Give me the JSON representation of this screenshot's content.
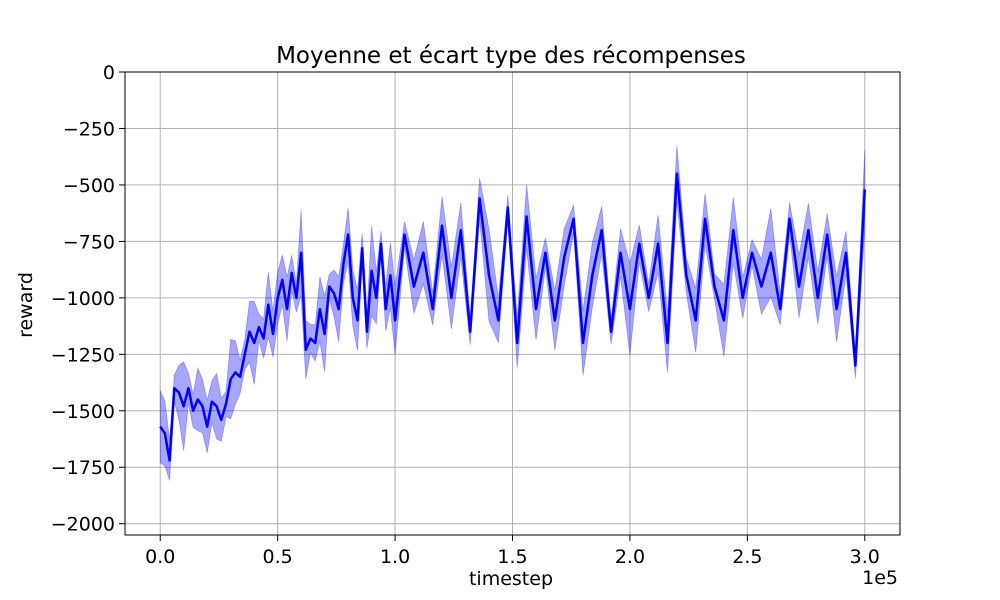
{
  "chart_data": {
    "type": "line",
    "title": "Moyenne et écart type des récompenses",
    "xlabel": "timestep",
    "ylabel": "reward",
    "x_offset_label": "1e5",
    "xlim": [
      -0.15,
      3.15
    ],
    "ylim": [
      -2050,
      0
    ],
    "x_ticks": [
      0.0,
      0.5,
      1.0,
      1.5,
      2.0,
      2.5,
      3.0
    ],
    "x_tick_labels": [
      "0.0",
      "0.5",
      "1.0",
      "1.5",
      "2.0",
      "2.5",
      "3.0"
    ],
    "y_ticks": [
      0,
      -250,
      -500,
      -750,
      -1000,
      -1250,
      -1500,
      -1750,
      -2000
    ],
    "y_tick_labels": [
      "0",
      "−250",
      "−500",
      "−750",
      "−1000",
      "−1250",
      "−1500",
      "−1750",
      "−2000"
    ],
    "grid": true,
    "colors": {
      "mean_line": "#0000ff",
      "band_fill": "#0000ff",
      "grid": "#b0b0b0"
    },
    "series": [
      {
        "x": [
          0.0,
          0.02,
          0.04,
          0.06,
          0.08,
          0.1,
          0.12,
          0.14,
          0.16,
          0.18,
          0.2,
          0.22,
          0.24,
          0.26,
          0.28,
          0.3,
          0.32,
          0.34,
          0.36,
          0.38,
          0.4,
          0.42,
          0.44,
          0.46,
          0.48,
          0.5,
          0.52,
          0.54,
          0.56,
          0.58,
          0.6,
          0.62,
          0.64,
          0.66,
          0.68,
          0.7,
          0.72,
          0.74,
          0.76,
          0.78,
          0.8,
          0.82,
          0.84,
          0.86,
          0.88,
          0.9,
          0.92,
          0.94,
          0.96,
          0.98,
          1.0,
          1.04,
          1.08,
          1.12,
          1.16,
          1.2,
          1.24,
          1.28,
          1.32,
          1.36,
          1.4,
          1.44,
          1.48,
          1.52,
          1.56,
          1.6,
          1.64,
          1.68,
          1.72,
          1.76,
          1.8,
          1.84,
          1.88,
          1.92,
          1.96,
          2.0,
          2.04,
          2.08,
          2.12,
          2.16,
          2.2,
          2.24,
          2.28,
          2.32,
          2.36,
          2.4,
          2.44,
          2.48,
          2.52,
          2.56,
          2.6,
          2.64,
          2.68,
          2.72,
          2.76,
          2.8,
          2.84,
          2.88,
          2.92,
          2.96,
          3.0
        ],
        "mean": [
          -1570,
          -1600,
          -1720,
          -1400,
          -1420,
          -1480,
          -1400,
          -1500,
          -1450,
          -1480,
          -1570,
          -1460,
          -1480,
          -1540,
          -1470,
          -1360,
          -1330,
          -1350,
          -1250,
          -1150,
          -1200,
          -1130,
          -1180,
          -1030,
          -1160,
          -1000,
          -920,
          -1050,
          -890,
          -1000,
          -800,
          -1230,
          -1180,
          -1200,
          -1050,
          -1160,
          -950,
          -980,
          -1050,
          -850,
          -720,
          -1000,
          -1100,
          -780,
          -1150,
          -880,
          -1000,
          -760,
          -1050,
          -900,
          -1100,
          -720,
          -950,
          -800,
          -1050,
          -680,
          -1000,
          -700,
          -1150,
          -560,
          -900,
          -1100,
          -600,
          -1200,
          -640,
          -1050,
          -800,
          -1100,
          -820,
          -650,
          -1200,
          -900,
          -700,
          -1150,
          -800,
          -1050,
          -760,
          -1000,
          -760,
          -1200,
          -450,
          -900,
          -1100,
          -650,
          -950,
          -1100,
          -700,
          -1000,
          -800,
          -950,
          -800,
          -1050,
          -650,
          -950,
          -700,
          -1000,
          -720,
          -1050,
          -800,
          -1300,
          -520
        ]
      }
    ]
  }
}
